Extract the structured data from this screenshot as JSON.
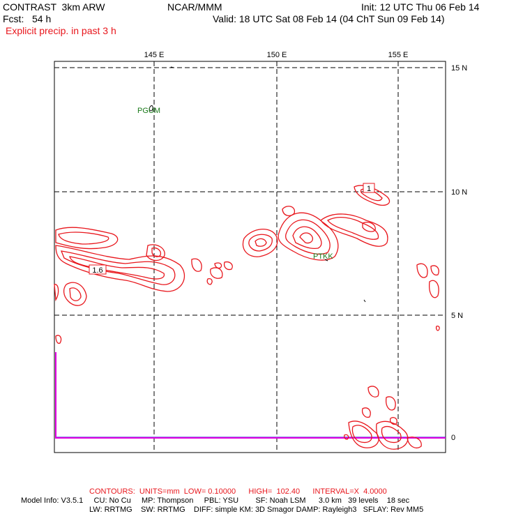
{
  "header": {
    "model": "CONTRAST  3km ARW",
    "org": "NCAR/MMM",
    "init": "Init: 12 UTC Thu 06 Feb 14",
    "fcst": "Fcst:   54 h",
    "valid": "Valid: 18 UTC Sat 08 Feb 14 (04 ChT Sun 09 Feb 14)",
    "field": "Explicit precip. in past 3 h"
  },
  "map": {
    "lon_labels": [
      "145 E",
      "150 E",
      "155 E"
    ],
    "lat_labels": [
      "15 N",
      "10 N",
      "5 N",
      "0"
    ],
    "stations": [
      "PGUM",
      "PTKK"
    ],
    "contour_labels": [
      "1",
      "1.6"
    ],
    "colors": {
      "contour": "#e8161c",
      "grid": "#000000",
      "station": "#1a7a1a",
      "boundary": "#e000e0",
      "equator": "#2222cc"
    }
  },
  "footer": {
    "contours": "CONTOURS:  UNITS=mm  LOW= 0.10000      HIGH=  102.40      INTERVAL=X  4.0000",
    "model_info_1": "Model Info: V3.5.1     CU: No Cu     MP: Thompson     PBL: YSU        SF: Noah LSM      3.0 km   39 levels    18 sec",
    "model_info_2": "LW: RRTMG    SW: RRTMG    DIFF: simple KM: 3D Smagor DAMP: Rayleigh3   SFLAY: Rev MM5"
  }
}
